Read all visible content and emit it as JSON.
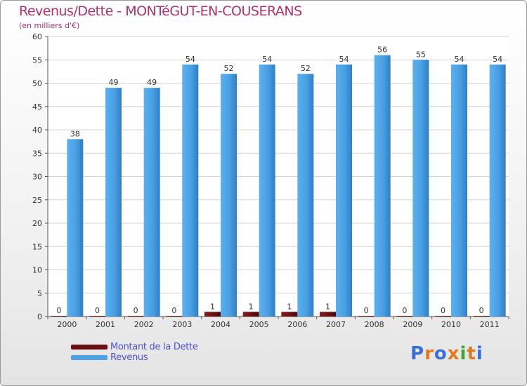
{
  "chart_data": {
    "type": "bar",
    "title": "Revenus/Dette - MONTéGUT-EN-COUSERANS",
    "subtitle": "(en milliers d'€)",
    "categories": [
      "2000",
      "2001",
      "2002",
      "2003",
      "2004",
      "2005",
      "2006",
      "2007",
      "2008",
      "2009",
      "2010",
      "2011"
    ],
    "series": [
      {
        "name": "Montant de la Dette",
        "color": "#6b0f12",
        "values": [
          0,
          0,
          0,
          0,
          1,
          1,
          1,
          1,
          0,
          0,
          0,
          0
        ]
      },
      {
        "name": "Revenus",
        "color": "#4da3e6",
        "values": [
          38,
          49,
          49,
          54,
          52,
          54,
          52,
          54,
          56,
          55,
          54,
          54
        ]
      }
    ],
    "ylim": [
      0,
      60
    ],
    "yticks": [
      0,
      5,
      10,
      15,
      20,
      25,
      30,
      35,
      40,
      45,
      50,
      55,
      60
    ],
    "grid": true,
    "legend_position": "bottom-left"
  },
  "logo": {
    "text": "Proxiti",
    "letter_colors": [
      "#3b6fd8",
      "#e07a1f",
      "#3b6fd8",
      "#e07a1f",
      "#35a835",
      "#e07a1f",
      "#3b6fd8"
    ]
  }
}
